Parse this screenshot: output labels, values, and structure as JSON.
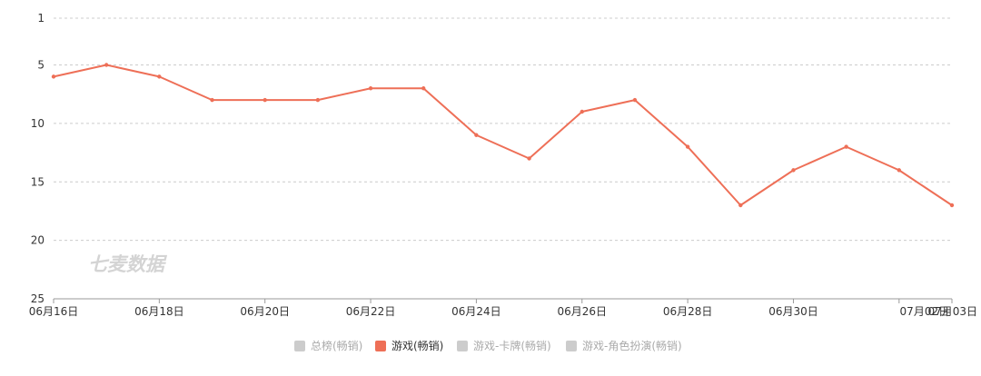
{
  "chart_data": {
    "type": "line",
    "x": [
      "06月16日",
      "06月17日",
      "06月18日",
      "06月19日",
      "06月20日",
      "06月21日",
      "06月22日",
      "06月23日",
      "06月24日",
      "06月25日",
      "06月26日",
      "06月27日",
      "06月28日",
      "06月29日",
      "06月30日",
      "07月01日",
      "07月02日",
      "07月03日"
    ],
    "x_tick_labels": [
      "06月16日",
      "06月18日",
      "06月20日",
      "06月22日",
      "06月24日",
      "06月26日",
      "06月28日",
      "06月30日",
      "07月02日",
      "07月03日"
    ],
    "y_ticks": [
      1,
      5,
      10,
      15,
      20,
      25
    ],
    "ylim": [
      1,
      25
    ],
    "y_inverted": true,
    "grid": true,
    "series": [
      {
        "name": "游戏(畅销)",
        "color": "#ee6f57",
        "values": [
          6,
          5,
          6,
          8,
          8,
          8,
          7,
          7,
          11,
          13,
          9,
          8,
          12,
          17,
          14,
          12,
          14,
          17
        ]
      }
    ],
    "legend": {
      "position": "bottom",
      "items": [
        {
          "label": "总榜(畅销)",
          "active": false
        },
        {
          "label": "游戏(畅销)",
          "active": true
        },
        {
          "label": "游戏-卡牌(畅销)",
          "active": false
        },
        {
          "label": "游戏-角色扮演(畅销)",
          "active": false
        }
      ]
    },
    "watermark": "七麦数据",
    "colors": {
      "active": "#ee6f57",
      "inactive": "#cccccc",
      "inactive_text": "#aaaaaa",
      "active_text": "#333333"
    }
  }
}
